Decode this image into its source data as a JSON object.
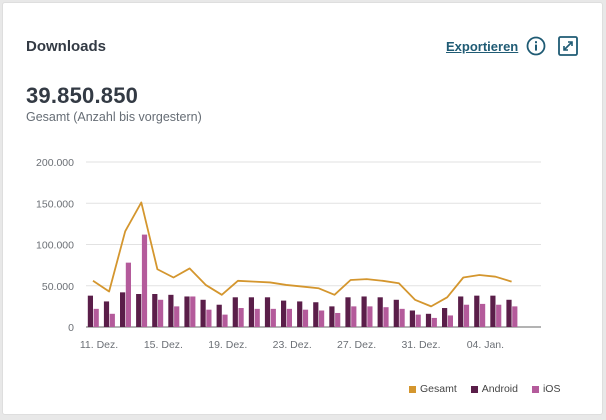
{
  "widget": {
    "title": "Downloads",
    "export_label": "Exportieren",
    "info_icon": "info-icon",
    "expand_icon": "expand-icon"
  },
  "summary": {
    "total": "39.850.850",
    "caption": "Gesamt (Anzahl bis vorgestern)"
  },
  "colors": {
    "gesamt": "#d4962e",
    "android": "#5a1e49",
    "ios": "#b45b9b",
    "accent": "#1f5b74"
  },
  "chart_data": {
    "type": "bar",
    "title": "Downloads",
    "ylim": [
      0,
      200000
    ],
    "yticks": [
      0,
      50000,
      100000,
      150000,
      200000
    ],
    "ytick_labels": [
      "0",
      "50.000",
      "100.000",
      "150.000",
      "200.000"
    ],
    "xtick_labels": [
      "11. Dez.",
      "15. Dez.",
      "19. Dez.",
      "23. Dez.",
      "27. Dez.",
      "31. Dez.",
      "04. Jan."
    ],
    "xtick_index": [
      0,
      4,
      8,
      12,
      16,
      20,
      24
    ],
    "categories": [
      "11.12",
      "12.12",
      "13.12",
      "14.12",
      "15.12",
      "16.12",
      "17.12",
      "18.12",
      "19.12",
      "20.12",
      "21.12",
      "22.12",
      "23.12",
      "24.12",
      "25.12",
      "26.12",
      "27.12",
      "28.12",
      "29.12",
      "30.12",
      "31.12",
      "01.01",
      "02.01",
      "03.01",
      "04.01",
      "05.01",
      "06.01"
    ],
    "series": [
      {
        "name": "Gesamt",
        "type": "line",
        "values": [
          56000,
          43000,
          116000,
          151000,
          70000,
          60000,
          71000,
          51000,
          39000,
          56000,
          55000,
          54000,
          51000,
          49000,
          47000,
          39000,
          57000,
          58000,
          56000,
          53000,
          33000,
          25000,
          36000,
          60000,
          63000,
          61000,
          55000
        ]
      },
      {
        "name": "Android",
        "type": "bar",
        "values": [
          38000,
          31000,
          42000,
          40000,
          40000,
          39000,
          37000,
          33000,
          27000,
          36000,
          36000,
          36000,
          32000,
          31000,
          30000,
          25000,
          36000,
          37000,
          36000,
          33000,
          20000,
          16000,
          23000,
          37000,
          38000,
          38000,
          33000
        ]
      },
      {
        "name": "iOS",
        "type": "bar",
        "values": [
          22000,
          16000,
          78000,
          112000,
          33000,
          25000,
          37000,
          21000,
          15000,
          23000,
          22000,
          22000,
          22000,
          21000,
          20000,
          17000,
          25000,
          25000,
          24000,
          22000,
          15000,
          11000,
          14000,
          27000,
          28000,
          27000,
          25000
        ]
      }
    ],
    "legend": [
      "Gesamt",
      "Android",
      "iOS"
    ],
    "legend_position": "bottom-right",
    "grid": true
  }
}
